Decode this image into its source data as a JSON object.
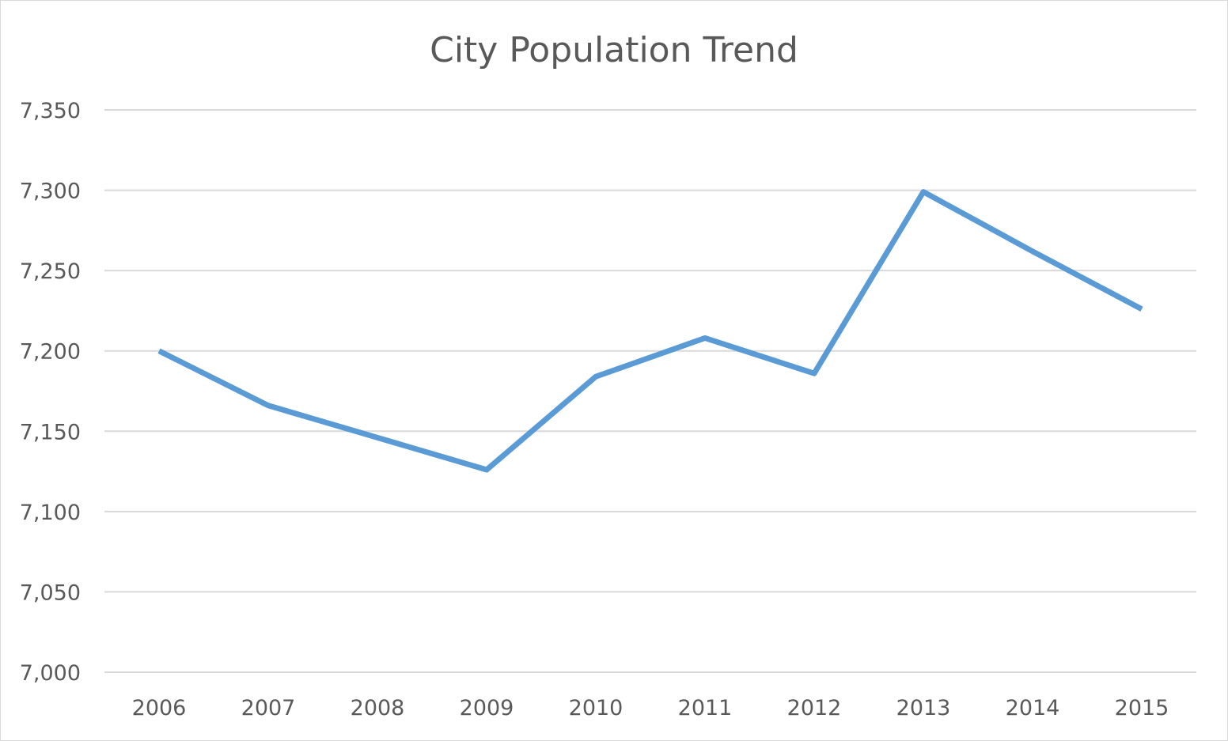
{
  "chart_data": {
    "type": "line",
    "title": "City Population Trend",
    "xlabel": "",
    "ylabel": "",
    "categories": [
      "2006",
      "2007",
      "2008",
      "2009",
      "2010",
      "2011",
      "2012",
      "2013",
      "2014",
      "2015"
    ],
    "series": [
      {
        "values": [
          7200,
          7166,
          7146,
          7126,
          7184,
          7208,
          7186,
          7299,
          7262,
          7226
        ],
        "color": "#5b9bd5"
      }
    ],
    "ylim": [
      7000,
      7350
    ],
    "yticks": [
      7000,
      7050,
      7100,
      7150,
      7200,
      7250,
      7300,
      7350
    ],
    "ytick_labels": [
      "7,000",
      "7,050",
      "7,100",
      "7,150",
      "7,200",
      "7,250",
      "7,300",
      "7,350"
    ],
    "grid": true,
    "gridline_color": "#d9d9d9",
    "legend": "none"
  }
}
